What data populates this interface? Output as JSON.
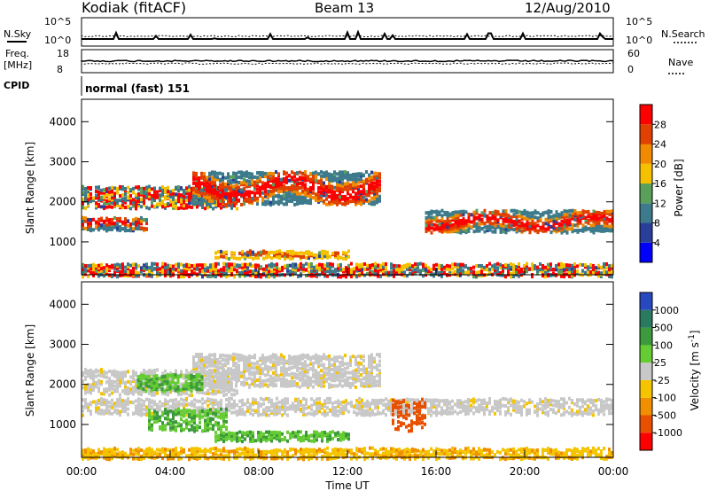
{
  "chart_data": [
    {
      "type": "line",
      "panel": "header",
      "station": "Kodiak (fitACF)",
      "beam": "Beam 13",
      "date": "12/Aug/2010",
      "left_axis_label": "N.Sky",
      "right_axis_label": "N.Search",
      "left_ticks": [
        "10^5",
        "10^0"
      ],
      "right_ticks": [
        "10^5",
        "10^0"
      ]
    },
    {
      "type": "line",
      "panel": "frequency",
      "left_axis_label_line1": "Freq.",
      "left_axis_label_line2": "[MHz]",
      "right_axis_label": "Nave",
      "left_ticks": [
        "18",
        "8"
      ],
      "right_ticks": [
        "60",
        "0"
      ],
      "ylim_left": [
        8,
        18
      ],
      "ylim_right": [
        0,
        60
      ]
    },
    {
      "type": "table",
      "panel": "cpid",
      "label": "CPID",
      "text": "normal (fast) 151"
    },
    {
      "type": "heatmap",
      "panel": "power",
      "ylabel": "Slant Range [km]",
      "xlabel": "",
      "y_ticks": [
        "1000",
        "2000",
        "3000",
        "4000"
      ],
      "ylim": [
        180,
        4560
      ],
      "colorbar_label": "Power [dB]",
      "colorbar_ticks": [
        "4",
        "8",
        "12",
        "16",
        "20",
        "24",
        "28"
      ],
      "colorbar_colors": [
        "#0000ff",
        "#2a3f9a",
        "#3c7a8c",
        "#5aa05a",
        "#f5c000",
        "#f08a00",
        "#e04000",
        "#ff0000"
      ],
      "echo_bands": [
        {
          "t": [
            0,
            3.0
          ],
          "range": [
            1350,
            1650
          ],
          "level": "high"
        },
        {
          "t": [
            0,
            7.0
          ],
          "range": [
            1900,
            2400
          ],
          "level": "mixed"
        },
        {
          "t": [
            5.0,
            13.5
          ],
          "range": [
            2000,
            2800
          ],
          "level": "high"
        },
        {
          "t": [
            15.5,
            24
          ],
          "range": [
            1300,
            1800
          ],
          "level": "high"
        },
        {
          "t": [
            6.0,
            12.0
          ],
          "range": [
            650,
            800
          ],
          "level": "medium"
        },
        {
          "t": [
            0,
            24
          ],
          "range": [
            200,
            500
          ],
          "level": "mixed"
        }
      ]
    },
    {
      "type": "heatmap",
      "panel": "velocity",
      "ylabel": "Slant Range [km]",
      "xlabel": "Time UT",
      "x_ticks": [
        "00:00",
        "04:00",
        "08:00",
        "12:00",
        "16:00",
        "20:00",
        "00:00"
      ],
      "y_ticks": [
        "1000",
        "2000",
        "3000",
        "4000"
      ],
      "ylim": [
        180,
        4560
      ],
      "colorbar_label": "Velocity [m s^-1]",
      "colorbar_ticks": [
        "1000",
        "500",
        "100",
        "25",
        "-25",
        "-100",
        "-500",
        "-1000"
      ],
      "colorbar_colors": [
        "#2848c0",
        "#2a7a60",
        "#3c9a3c",
        "#66cc33",
        "#c8c8c8",
        "#f5c400",
        "#f09000",
        "#e85000",
        "#ff0000"
      ]
    }
  ]
}
